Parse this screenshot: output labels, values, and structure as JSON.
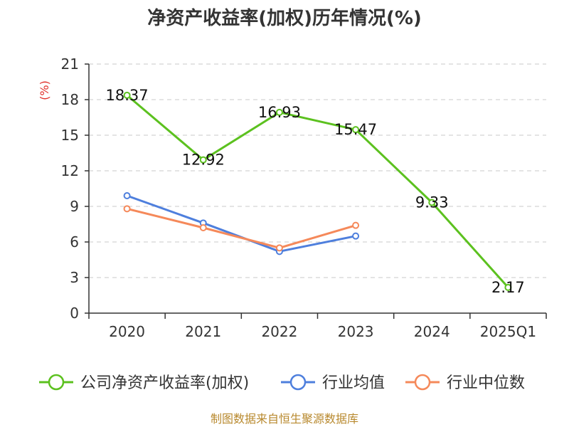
{
  "chart_data": {
    "type": "line",
    "title": "净资产收益率(加权)历年情况(%)",
    "ylabel": "(%)",
    "categories": [
      "2020",
      "2021",
      "2022",
      "2023",
      "2024",
      "2025Q1"
    ],
    "yticks": [
      "0",
      "3",
      "6",
      "9",
      "12",
      "15",
      "18",
      "21"
    ],
    "ylim": [
      0,
      21
    ],
    "grid": true,
    "legend_position": "bottom",
    "series": [
      {
        "name": "公司净资产收益率(加权)",
        "color": "#5cc11f",
        "values": [
          18.37,
          12.92,
          16.93,
          15.47,
          9.33,
          2.17
        ],
        "labels": [
          "18.37",
          "12.92",
          "16.93",
          "15.47",
          "9.33",
          "2.17"
        ]
      },
      {
        "name": "行业均值",
        "color": "#4e7fdd",
        "values": [
          9.9,
          7.6,
          5.2,
          6.5,
          null,
          null
        ]
      },
      {
        "name": "行业中位数",
        "color": "#f5895a",
        "values": [
          8.8,
          7.2,
          5.5,
          7.4,
          null,
          null
        ]
      }
    ]
  },
  "source": "制图数据来自恒生聚源数据库"
}
